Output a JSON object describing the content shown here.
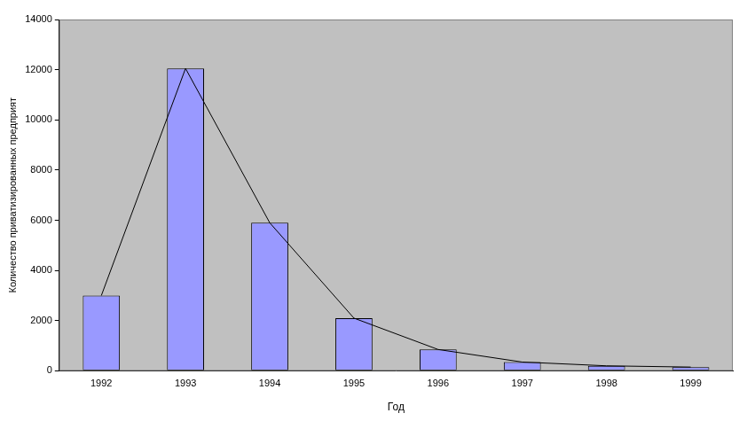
{
  "chart_data": {
    "type": "bar",
    "x_label": "Год",
    "y_label": "Количество приватизированных предприят",
    "categories": [
      "1992",
      "1993",
      "1994",
      "1995",
      "1996",
      "1997",
      "1998",
      "1999"
    ],
    "series": [
      {
        "type": "bar",
        "color": "#9999ff",
        "values": [
          3000,
          12050,
          5900,
          2100,
          850,
          350,
          200,
          150
        ]
      },
      {
        "type": "line",
        "color": "#000000",
        "values": [
          3000,
          12050,
          5900,
          2100,
          850,
          350,
          200,
          150
        ]
      }
    ],
    "ylim": [
      0,
      14000
    ],
    "yticks": [
      0,
      2000,
      4000,
      6000,
      8000,
      10000,
      12000,
      14000
    ],
    "grid": false
  }
}
